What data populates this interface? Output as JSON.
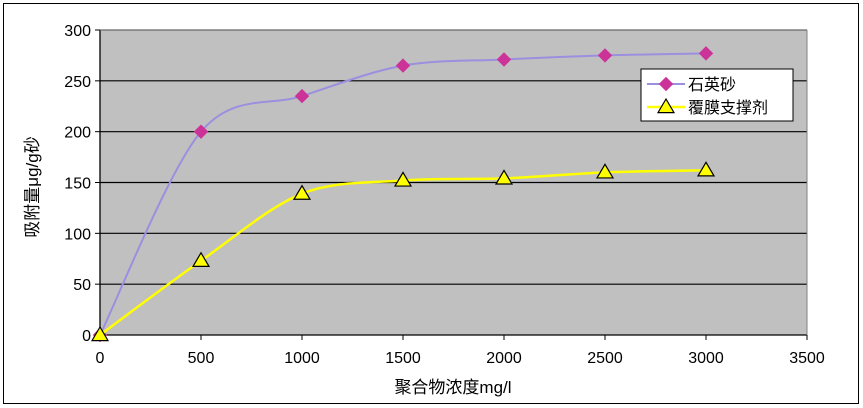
{
  "chart_data": {
    "type": "line",
    "title": "",
    "xlabel": "聚合物浓度mg/l",
    "ylabel": "吸附量μg/g砂",
    "xlim": [
      0,
      3500
    ],
    "ylim": [
      0,
      300
    ],
    "x_ticks": [
      "0",
      "500",
      "1000",
      "1500",
      "2000",
      "2500",
      "3000",
      "3500"
    ],
    "y_ticks": [
      "0",
      "50",
      "100",
      "150",
      "200",
      "250",
      "300"
    ],
    "grid": true,
    "legend_position": "top-right",
    "series": [
      {
        "name": "石英砂",
        "color": "#9b8fe0",
        "marker_color": "#cc3399",
        "marker": "diamond",
        "x": [
          0,
          500,
          1000,
          1500,
          2000,
          2500,
          3000
        ],
        "y": [
          0,
          200,
          235,
          265,
          271,
          275,
          277
        ]
      },
      {
        "name": "覆膜支撑剂",
        "color": "#ffff00",
        "marker_color": "#ffff00",
        "marker": "triangle",
        "x": [
          0,
          500,
          1000,
          1500,
          2000,
          2500,
          3000
        ],
        "y": [
          0,
          73,
          139,
          152,
          154,
          160,
          162
        ]
      }
    ]
  }
}
